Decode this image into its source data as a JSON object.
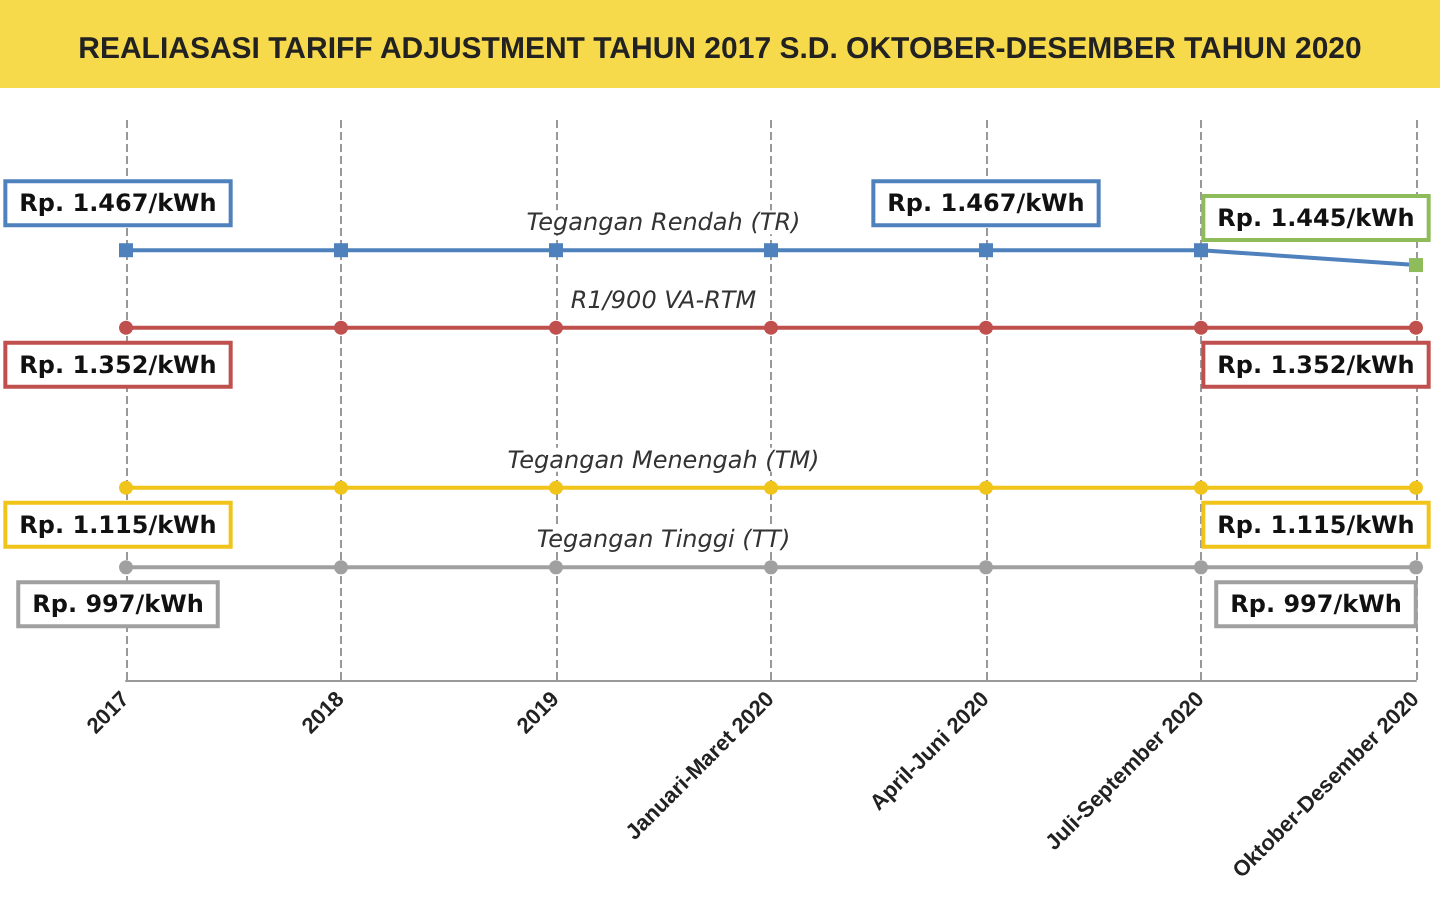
{
  "chart_data": {
    "type": "line",
    "title": "REALIASASI TARIFF ADJUSTMENT TAHUN 2017 S.D. OKTOBER-DESEMBER TAHUN 2020",
    "categories": [
      "2017",
      "2018",
      "2019",
      "Januari-Maret 2020",
      "April-Juni 2020",
      "Juli-September 2020",
      "Oktober-Desember 2020"
    ],
    "series": [
      {
        "name": "Tegangan Rendah (TR)",
        "color": "#4f81bd",
        "colors": [
          "#4f81bd",
          "#4f81bd",
          "#4f81bd",
          "#4f81bd",
          "#4f81bd",
          "#4f81bd",
          "#8fbc5a"
        ],
        "marker": "square",
        "values": [
          1467,
          1467,
          1467,
          1467,
          1467,
          1467,
          1445
        ],
        "value_labels": [
          "Rp. 1.467/kWh",
          null,
          null,
          null,
          "Rp. 1.467/kWh",
          null,
          "Rp. 1.445/kWh"
        ]
      },
      {
        "name": "R1/900 VA-RTM",
        "color": "#c0504d",
        "marker": "circle",
        "values": [
          1352,
          1352,
          1352,
          1352,
          1352,
          1352,
          1352
        ],
        "value_labels": [
          "Rp. 1.352/kWh",
          null,
          null,
          null,
          null,
          null,
          "Rp. 1.352/kWh"
        ]
      },
      {
        "name": "Tegangan Menengah (TM)",
        "color": "#f0c419",
        "marker": "circle",
        "values": [
          1115,
          1115,
          1115,
          1115,
          1115,
          1115,
          1115
        ],
        "value_labels": [
          "Rp. 1.115/kWh",
          null,
          null,
          null,
          null,
          null,
          "Rp. 1.115/kWh"
        ]
      },
      {
        "name": "Tegangan Tinggi (TT)",
        "color": "#a0a0a0",
        "marker": "circle",
        "values": [
          997,
          997,
          997,
          997,
          997,
          997,
          997
        ],
        "value_labels": [
          "Rp. 997/kWh",
          null,
          null,
          null,
          null,
          null,
          "Rp. 997/kWh"
        ]
      }
    ],
    "ylim": [
      830,
      1660
    ],
    "grid": "x",
    "legend": false,
    "line_style": "solid"
  }
}
